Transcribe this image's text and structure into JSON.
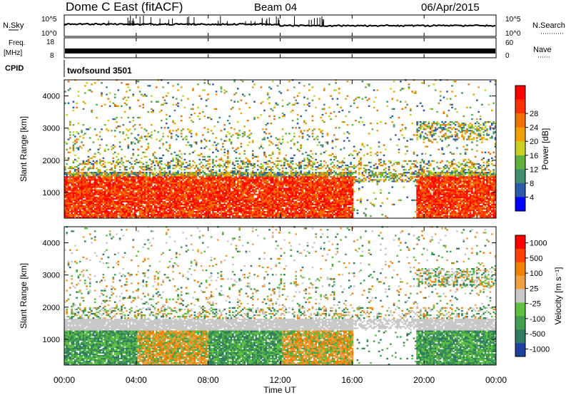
{
  "header": {
    "title": "Dome C East (fitACF)",
    "beam": "Beam 04",
    "date": "06/Apr/2015"
  },
  "top_panels": {
    "nsky_label": "N.Sky",
    "nsearch_label": "N.Search",
    "freq_label": "Freq.",
    "freq_unit": "[MHz]",
    "nave_label": "Nave",
    "cpid_label": "CPID",
    "cpid_value": "twofsound 3501",
    "noise_ticks": [
      "10^5",
      "10^0"
    ],
    "noise_right_ticks": [
      "10^5",
      "10^0"
    ],
    "freq_ticks": [
      "18",
      "8"
    ],
    "nave_ticks": [
      "60",
      "0"
    ]
  },
  "chart_data": [
    {
      "type": "heatmap",
      "name": "power",
      "ylabel": "Slant Range [km]",
      "ylim": [
        200,
        4500
      ],
      "yticks": [
        "1000",
        "2000",
        "3000",
        "4000"
      ],
      "colorbar_label": "Power [dB]",
      "colorbar_ticks": [
        "4",
        "8",
        "12",
        "16",
        "20",
        "24",
        "28"
      ],
      "colorbar_colors": [
        "#0000ff",
        "#2a5aa8",
        "#3f8f6f",
        "#60b040",
        "#c8d020",
        "#f0a000",
        "#f07000",
        "#ff3000",
        "#ff0000"
      ]
    },
    {
      "type": "heatmap",
      "name": "velocity",
      "ylabel": "Slant Range [km]",
      "ylim": [
        200,
        4500
      ],
      "yticks": [
        "1000",
        "2000",
        "3000",
        "4000"
      ],
      "xlabel": "Time UT",
      "xticks": [
        "00:00",
        "04:00",
        "08:00",
        "12:00",
        "16:00",
        "20:00",
        "00:00"
      ],
      "colorbar_label": "Velocity [m s⁻¹]",
      "colorbar_ticks": [
        "1000",
        "500",
        "100",
        "25",
        "-25",
        "-100",
        "-500",
        "-1000"
      ],
      "colorbar_colors": [
        "#2040a0",
        "#2f7a60",
        "#40a050",
        "#60c040",
        "#c8c8c8",
        "#f0a040",
        "#f08000",
        "#ff4000",
        "#ff0000"
      ]
    }
  ]
}
